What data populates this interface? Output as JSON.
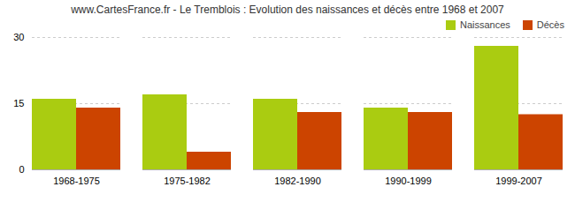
{
  "chart_data": {
    "type": "bar",
    "title": "www.CartesFrance.fr - Le Tremblois : Evolution des naissances et décès entre 1968 et 2007",
    "categories": [
      "1968-1975",
      "1975-1982",
      "1982-1990",
      "1990-1999",
      "1999-2007"
    ],
    "series": [
      {
        "name": "Naissances",
        "color": "#aacc11",
        "values": [
          16,
          17,
          16,
          14,
          28
        ]
      },
      {
        "name": "Décès",
        "color": "#cc4400",
        "values": [
          14,
          4,
          13,
          13,
          12.5
        ]
      }
    ],
    "ylim": [
      0,
      30
    ],
    "yticks": [
      0,
      15,
      30
    ],
    "grid": true,
    "legend": "upper right"
  }
}
